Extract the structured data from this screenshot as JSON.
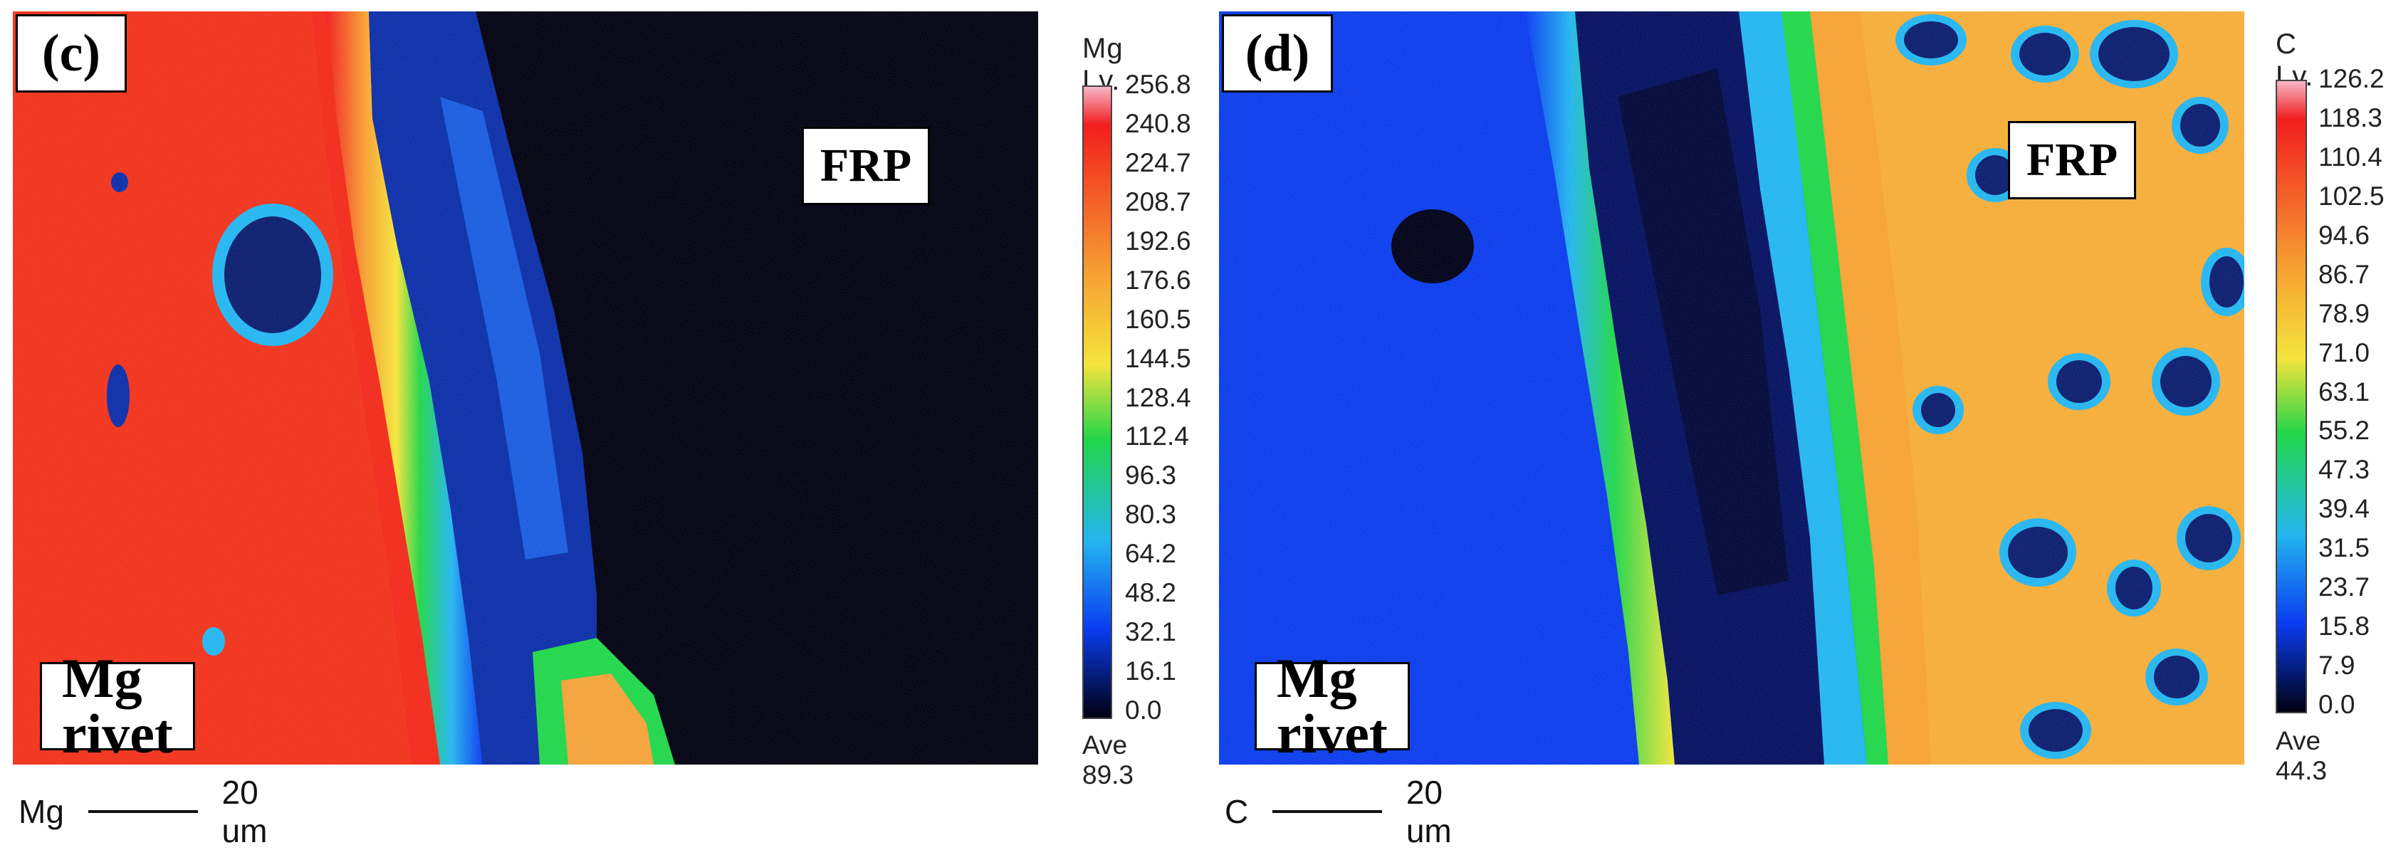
{
  "colors": {
    "ramp_low": "#000010",
    "ramp_blue": "#0a3cf0",
    "ramp_cyan": "#24b5f0",
    "ramp_green": "#21d64a",
    "ramp_yellow": "#f4e43c",
    "ramp_orange": "#f6a232",
    "ramp_red": "#f21e1e",
    "ramp_high": "#f7b6c8"
  },
  "icons": [
    "scale-bar-line"
  ],
  "panels": [
    {
      "tag": "(c)",
      "element": "Mg",
      "level_title": "Mg  Lv.",
      "frp_label": "FRP",
      "rivet_label": "Mg rivet",
      "scale": [
        "256.8",
        "240.8",
        "224.7",
        "208.7",
        "192.6",
        "176.6",
        "160.5",
        "144.5",
        "128.4",
        "112.4",
        "96.3",
        "80.3",
        "64.2",
        "48.2",
        "32.1",
        "16.1",
        "0.0"
      ],
      "average": "Ave 89.3",
      "bottom_element": "Mg",
      "scale_bar_text": "20 um"
    },
    {
      "tag": "(d)",
      "element": "C",
      "level_title": "C  Lv.",
      "frp_label": "FRP",
      "rivet_label": "Mg rivet",
      "scale": [
        "126.2",
        "118.3",
        "110.4",
        "102.5",
        "94.6",
        "86.7",
        "78.9",
        "71.0",
        "63.1",
        "55.2",
        "47.3",
        "39.4",
        "31.5",
        "23.7",
        "15.8",
        "7.9",
        "0.0"
      ],
      "average": "Ave 44.3",
      "bottom_element": "C",
      "scale_bar_text": "20 um"
    }
  ]
}
